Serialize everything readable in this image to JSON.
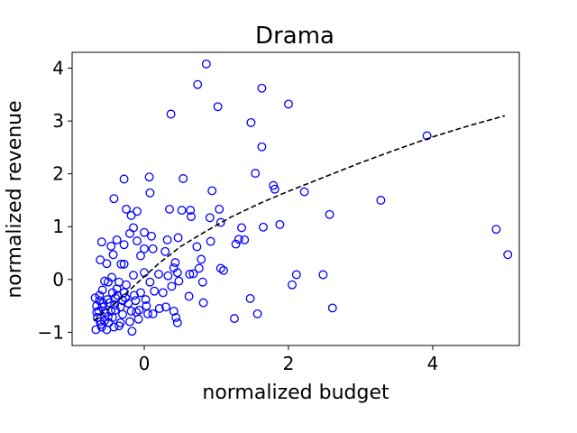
{
  "chart_data": {
    "type": "scatter",
    "title": "Drama",
    "xlabel": "normalized budget",
    "ylabel": "normalized revenue",
    "xlim": [
      -1.0,
      5.2
    ],
    "ylim": [
      -1.25,
      4.3
    ],
    "xticks": [
      0,
      2,
      4
    ],
    "yticks": [
      -1,
      0,
      1,
      2,
      3,
      4
    ],
    "xtick_labels": [
      "0",
      "2",
      "4"
    ],
    "ytick_labels": [
      "−1",
      "0",
      "1",
      "2",
      "3",
      "4"
    ],
    "marker_color": "#0000ff",
    "trend_color": "#000000",
    "series": [
      {
        "points": [
          [
            0.86,
            4.08
          ],
          [
            0.74,
            3.69
          ],
          [
            1.63,
            3.62
          ],
          [
            0.37,
            3.13
          ],
          [
            2.0,
            3.32
          ],
          [
            1.02,
            3.27
          ],
          [
            1.48,
            2.97
          ],
          [
            1.63,
            2.51
          ],
          [
            3.92,
            2.72
          ],
          [
            1.54,
            2.01
          ],
          [
            -0.28,
            1.9
          ],
          [
            0.07,
            1.94
          ],
          [
            0.54,
            1.91
          ],
          [
            1.79,
            1.78
          ],
          [
            1.81,
            1.71
          ],
          [
            2.22,
            1.66
          ],
          [
            0.94,
            1.68
          ],
          [
            0.08,
            1.64
          ],
          [
            -0.42,
            1.53
          ],
          [
            3.28,
            1.5
          ],
          [
            -0.25,
            1.33
          ],
          [
            -0.18,
            1.21
          ],
          [
            -0.1,
            1.29
          ],
          [
            0.35,
            1.33
          ],
          [
            0.52,
            1.31
          ],
          [
            0.64,
            1.31
          ],
          [
            0.65,
            1.19
          ],
          [
            0.91,
            1.17
          ],
          [
            1.04,
            1.33
          ],
          [
            1.06,
            1.08
          ],
          [
            1.35,
            0.98
          ],
          [
            1.65,
            0.99
          ],
          [
            1.88,
            1.04
          ],
          [
            2.57,
            1.23
          ],
          [
            4.88,
            0.95
          ],
          [
            5.04,
            0.47
          ],
          [
            0.0,
            0.89
          ],
          [
            0.1,
            0.82
          ],
          [
            -0.15,
            0.98
          ],
          [
            -0.2,
            0.87
          ],
          [
            -0.38,
            0.75
          ],
          [
            -0.59,
            0.71
          ],
          [
            -0.28,
            0.66
          ],
          [
            -0.1,
            0.73
          ],
          [
            0.32,
            0.75
          ],
          [
            0.47,
            0.79
          ],
          [
            0.92,
            0.72
          ],
          [
            1.27,
            0.67
          ],
          [
            1.31,
            0.76
          ],
          [
            1.39,
            0.75
          ],
          [
            0.0,
            0.58
          ],
          [
            0.12,
            0.58
          ],
          [
            0.29,
            0.53
          ],
          [
            0.73,
            0.62
          ],
          [
            -0.43,
            0.47
          ],
          [
            -0.46,
            0.63
          ],
          [
            -0.28,
            0.29
          ],
          [
            -0.05,
            0.45
          ],
          [
            0.43,
            0.32
          ],
          [
            0.41,
            0.22
          ],
          [
            0.63,
            0.1
          ],
          [
            0.76,
            0.21
          ],
          [
            0.79,
            0.38
          ],
          [
            1.06,
            0.21
          ],
          [
            1.1,
            0.17
          ],
          [
            -0.61,
            0.37
          ],
          [
            -0.52,
            0.3
          ],
          [
            -0.32,
            0.29
          ],
          [
            2.48,
            0.09
          ],
          [
            2.11,
            0.09
          ],
          [
            2.05,
            -0.1
          ],
          [
            -0.15,
            0.08
          ],
          [
            0.0,
            0.13
          ],
          [
            0.2,
            0.1
          ],
          [
            0.33,
            0.07
          ],
          [
            0.46,
            0.13
          ],
          [
            0.48,
            -0.03
          ],
          [
            0.68,
            0.11
          ],
          [
            0.81,
            -0.05
          ],
          [
            -0.55,
            -0.03
          ],
          [
            -0.45,
            0.04
          ],
          [
            -0.35,
            -0.05
          ],
          [
            -0.25,
            -0.1
          ],
          [
            0.08,
            -0.05
          ],
          [
            0.14,
            -0.22
          ],
          [
            0.26,
            -0.25
          ],
          [
            0.38,
            -0.13
          ],
          [
            -0.62,
            -0.3
          ],
          [
            -0.4,
            -0.35
          ],
          [
            -0.3,
            -0.4
          ],
          [
            -0.14,
            -0.3
          ],
          [
            -0.05,
            -0.25
          ],
          [
            0.02,
            -0.38
          ],
          [
            0.3,
            -0.52
          ],
          [
            0.41,
            -0.6
          ],
          [
            0.62,
            -0.32
          ],
          [
            0.82,
            -0.44
          ],
          [
            1.47,
            -0.36
          ],
          [
            1.25,
            -0.74
          ],
          [
            1.57,
            -0.65
          ],
          [
            2.61,
            -0.54
          ],
          [
            -0.66,
            -0.62
          ],
          [
            -0.58,
            -0.52
          ],
          [
            -0.5,
            -0.7
          ],
          [
            -0.4,
            -0.58
          ],
          [
            -0.3,
            -0.66
          ],
          [
            -0.2,
            -0.8
          ],
          [
            -0.11,
            -0.62
          ],
          [
            0.03,
            -0.5
          ],
          [
            0.12,
            -0.65
          ],
          [
            0.21,
            -0.55
          ],
          [
            0.44,
            -0.72
          ],
          [
            0.46,
            -0.82
          ],
          [
            -0.67,
            -0.95
          ],
          [
            -0.6,
            -0.85
          ],
          [
            -0.52,
            -0.95
          ],
          [
            -0.42,
            -0.9
          ],
          [
            -0.33,
            -0.82
          ],
          [
            -0.17,
            -0.98
          ],
          [
            -0.07,
            -0.58
          ],
          [
            -0.62,
            -0.4
          ],
          [
            -0.55,
            -0.78
          ],
          [
            -0.48,
            -0.44
          ],
          [
            -0.35,
            -0.88
          ],
          [
            -0.65,
            -0.72
          ],
          [
            -0.58,
            -0.2
          ],
          [
            -0.5,
            -0.05
          ],
          [
            -0.44,
            -0.25
          ],
          [
            -0.38,
            -0.18
          ],
          [
            -0.28,
            -0.25
          ],
          [
            -0.22,
            -0.45
          ],
          [
            -0.12,
            -0.4
          ],
          [
            -0.68,
            -0.35
          ],
          [
            -0.66,
            -0.5
          ],
          [
            -0.63,
            -0.6
          ],
          [
            -0.61,
            -0.8
          ],
          [
            -0.59,
            -0.9
          ],
          [
            -0.57,
            -0.45
          ],
          [
            -0.54,
            -0.62
          ],
          [
            -0.51,
            -0.38
          ],
          [
            -0.49,
            -0.82
          ],
          [
            -0.46,
            -0.6
          ],
          [
            -0.44,
            -0.72
          ],
          [
            -0.41,
            -0.48
          ],
          [
            -0.37,
            -0.3
          ],
          [
            -0.33,
            -0.52
          ],
          [
            -0.26,
            -0.35
          ],
          [
            -0.18,
            -0.6
          ],
          [
            -0.08,
            -0.75
          ],
          [
            0.05,
            -0.65
          ]
        ]
      }
    ],
    "trend_line": [
      [
        -0.7,
        -0.78
      ],
      [
        -0.4,
        -0.45
      ],
      [
        -0.1,
        -0.07
      ],
      [
        0.2,
        0.3
      ],
      [
        0.5,
        0.62
      ],
      [
        0.8,
        0.87
      ],
      [
        1.2,
        1.18
      ],
      [
        1.6,
        1.44
      ],
      [
        2.0,
        1.67
      ],
      [
        2.5,
        1.94
      ],
      [
        3.0,
        2.21
      ],
      [
        3.5,
        2.46
      ],
      [
        4.0,
        2.7
      ],
      [
        4.5,
        2.91
      ],
      [
        5.0,
        3.1
      ]
    ]
  }
}
